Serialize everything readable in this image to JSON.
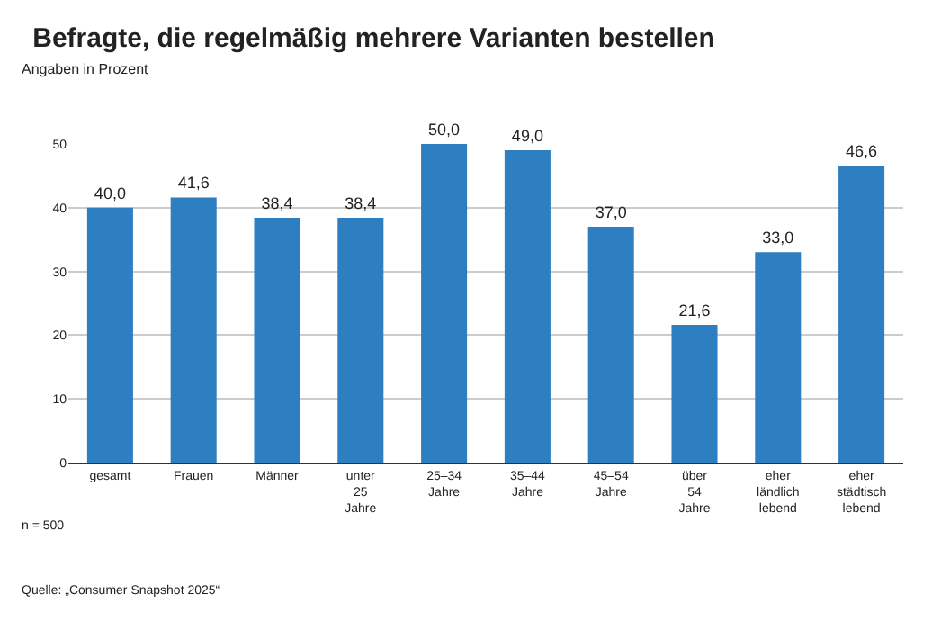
{
  "chart_data": {
    "type": "bar",
    "title": "Befragte, die regelmäßig mehrere Varianten bestellen",
    "ylabel": "Angaben in Prozent",
    "categories": [
      "gesamt",
      "Frauen",
      "Männer",
      "unter 25 Jahre",
      "25–34 Jahre",
      "35–44 Jahre",
      "45–54 Jahre",
      "über 54 Jahre",
      "eher ländlich lebend",
      "eher städtisch lebend"
    ],
    "values": [
      40.0,
      41.6,
      38.4,
      38.4,
      50.0,
      49.0,
      37.0,
      21.6,
      33.0,
      46.6
    ],
    "value_labels": [
      "40,0",
      "41,6",
      "38,4",
      "38,4",
      "50,0",
      "49,0",
      "37,0",
      "21,6",
      "33,0",
      "46,6"
    ],
    "color": "#2e7fc2",
    "ylim": [
      0,
      50
    ],
    "yticks": [
      0,
      10,
      20,
      30,
      40,
      50
    ],
    "grid": "y",
    "annotations": [
      "n = 500",
      "Quelle: „Consumer Snapshot 2025“"
    ]
  }
}
